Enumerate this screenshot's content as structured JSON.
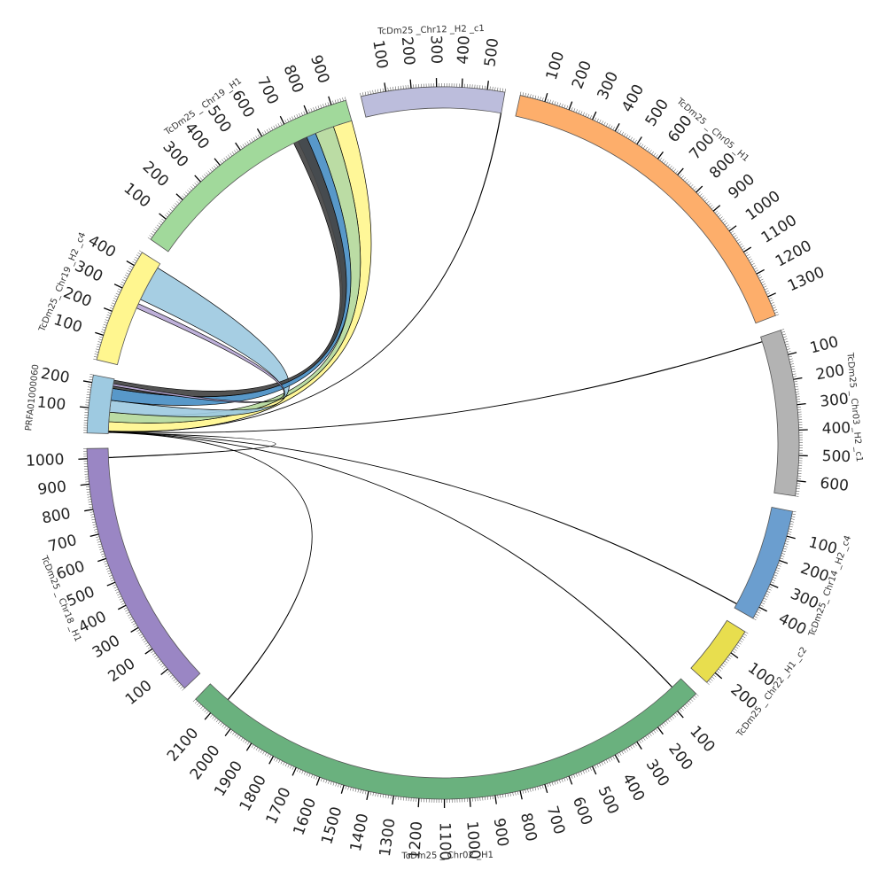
{
  "chart_data": {
    "type": "chord",
    "segments": [
      {
        "name": "PRFA01000060",
        "size": 230,
        "color": "#9ecae1",
        "tick_labels": [
          "100",
          "200"
        ]
      },
      {
        "name": "TcDm25_ Chr19 _H2 _c4",
        "size": 460,
        "color": "#fff68f",
        "tick_labels": [
          "100",
          "200",
          "300",
          "400"
        ]
      },
      {
        "name": "TcDm25 _ Chr19 _H1",
        "size": 960,
        "color": "#a1d99b",
        "tick_labels": [
          "100",
          "200",
          "300",
          "400",
          "500",
          "600",
          "700",
          "800",
          "900"
        ]
      },
      {
        "name": "TcDm25 _Chr12 _H2 _c1",
        "size": 570,
        "color": "#bcbddc",
        "tick_labels": [
          "100",
          "200",
          "300",
          "400",
          "500"
        ]
      },
      {
        "name": "TcDm25 _ Chr05 _H1",
        "size": 1380,
        "color": "#fdae6b",
        "tick_labels": [
          "100",
          "200",
          "300",
          "400",
          "500",
          "600",
          "700",
          "800",
          "900",
          "1000",
          "1100",
          "1200",
          "1300"
        ]
      },
      {
        "name": "TcDm25 _ Chr03 _H2 _c1",
        "size": 660,
        "color": "#b3b3b3",
        "tick_labels": [
          "100",
          "200",
          "300",
          "400",
          "500",
          "600"
        ]
      },
      {
        "name": "TcDm25_ Chr14 _H2 _c4",
        "size": 450,
        "color": "#6b9ecf",
        "tick_labels": [
          "100",
          "200",
          "300",
          "400"
        ]
      },
      {
        "name": "TcDm25 _ Chr22 _H1 _c2",
        "size": 250,
        "color": "#e8de4e",
        "tick_labels": [
          "100",
          "200"
        ]
      },
      {
        "name": "TcDm25 _ Chr02 _H1",
        "size": 2180,
        "color": "#6ab17e",
        "tick_labels": [
          "100",
          "200",
          "300",
          "400",
          "500",
          "600",
          "700",
          "800",
          "900",
          "1000",
          "1100",
          "1200",
          "1300",
          "1400",
          "1500",
          "1600",
          "1700",
          "1800",
          "1900",
          "2000",
          "2100"
        ]
      },
      {
        "name": "TcDm25 _ Chr18 _H1",
        "size": 1040,
        "color": "#9a86c4",
        "tick_labels": [
          "100",
          "200",
          "300",
          "400",
          "500",
          "600",
          "700",
          "800",
          "900",
          "1000"
        ]
      }
    ],
    "links": [
      {
        "from": "PRFA01000060",
        "from_range": [
          10,
          50
        ],
        "to": "TcDm25 _ Chr19 _H1",
        "to_range": [
          880,
          960
        ],
        "color": "#fff68f"
      },
      {
        "from": "PRFA01000060",
        "from_range": [
          50,
          90
        ],
        "to": "TcDm25 _ Chr19 _H1",
        "to_range": [
          800,
          880
        ],
        "color": "#b5d99c"
      },
      {
        "from": "PRFA01000060",
        "from_range": [
          90,
          140
        ],
        "to": "TcDm25_ Chr19 _H2 _c4",
        "to_range": [
          290,
          440
        ],
        "color": "#9ecae1"
      },
      {
        "from": "PRFA01000060",
        "from_range": [
          140,
          190
        ],
        "to": "TcDm25 _ Chr19 _H1",
        "to_range": [
          720,
          800
        ],
        "color": "#4a8fc4"
      },
      {
        "from": "PRFA01000060",
        "from_range": [
          190,
          225
        ],
        "to": "TcDm25 _ Chr19 _H1",
        "to_range": [
          700,
          760
        ],
        "color": "#444444"
      },
      {
        "from": "PRFA01000060",
        "from_range": [
          200,
          210
        ],
        "to": "TcDm25_ Chr19 _H2 _c4",
        "to_range": [
          250,
          270
        ],
        "color": "#b8a9d6"
      },
      {
        "from": "PRFA01000060",
        "from_range": [
          5,
          6
        ],
        "to": "TcDm25 _ Chr02 _H1",
        "to_range": [
          2080,
          2082
        ],
        "color": "#000000"
      },
      {
        "from": "PRFA01000060",
        "from_range": [
          6,
          7
        ],
        "to": "TcDm25 _ Chr18 _H1",
        "to_range": [
          1000,
          1002
        ],
        "color": "#000000"
      },
      {
        "from": "PRFA01000060",
        "from_range": [
          7,
          8
        ],
        "to": "TcDm25 _ Chr02 _H1",
        "to_range": [
          50,
          52
        ],
        "color": "#000000"
      },
      {
        "from": "PRFA01000060",
        "from_range": [
          8,
          9
        ],
        "to": "TcDm25_ Chr14 _H2 _c4",
        "to_range": [
          430,
          432
        ],
        "color": "#000000"
      },
      {
        "from": "PRFA01000060",
        "from_range": [
          9,
          10
        ],
        "to": "TcDm25 _ Chr03 _H2 _c1",
        "to_range": [
          20,
          22
        ],
        "color": "#000000"
      },
      {
        "from": "PRFA01000060",
        "from_range": [
          10,
          11
        ],
        "to": "TcDm25 _Chr12 _H2 _c1",
        "to_range": [
          568,
          570
        ],
        "color": "#000000"
      }
    ]
  }
}
